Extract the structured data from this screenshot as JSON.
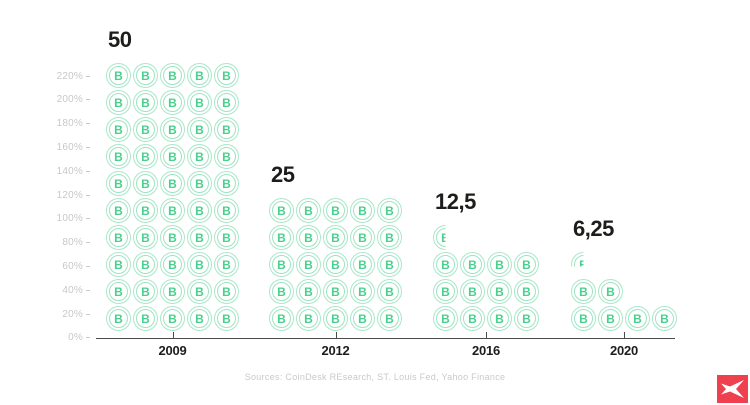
{
  "chart_data": {
    "type": "bar",
    "subtype": "pictogram",
    "categories": [
      "2009",
      "2012",
      "2016",
      "2020"
    ],
    "values": [
      50,
      25,
      12.5,
      6.25
    ],
    "value_labels": [
      "50",
      "25",
      "12,5",
      "6,25"
    ],
    "y_axis_ticks": [
      "220%",
      "200%",
      "180%",
      "160%",
      "140%",
      "120%",
      "100%",
      "80%",
      "60%",
      "40%",
      "20%",
      "0%"
    ],
    "coin_glyph": "B",
    "grid": false,
    "legend_position": "none",
    "groups": [
      {
        "year": "2009",
        "value_label": "50",
        "value": 50,
        "coin_rows": [
          5,
          5,
          5,
          5,
          5,
          5,
          5,
          5,
          5,
          5
        ],
        "fraction": null
      },
      {
        "year": "2012",
        "value_label": "25",
        "value": 25,
        "coin_rows": [
          5,
          5,
          5,
          5,
          5
        ],
        "fraction": null
      },
      {
        "year": "2016",
        "value_label": "12,5",
        "value": 12.5,
        "coin_rows": [
          4,
          4,
          4
        ],
        "fraction": "half"
      },
      {
        "year": "2020",
        "value_label": "6,25",
        "value": 6.25,
        "coin_rows": [
          2,
          4
        ],
        "fraction": "quarter"
      }
    ]
  },
  "footer": {
    "source_text": "Sources: CoinDesk REsearch, ST. Louis Fed, Yahoo Finance"
  },
  "branding": {
    "logo_name": "xtb-logo",
    "logo_background": "#ee404f",
    "logo_mark_color": "#ffffff"
  },
  "colors": {
    "coin_ring": "#a9e8c9",
    "coin_symbol": "#49d08c",
    "axis": "#4a4a4a",
    "y_tick_label": "#c8c8c8",
    "value_label": "#1d1d1b",
    "year_label": "#1d1d1b",
    "source_text": "#c9c9c9",
    "background": "#ffffff"
  }
}
